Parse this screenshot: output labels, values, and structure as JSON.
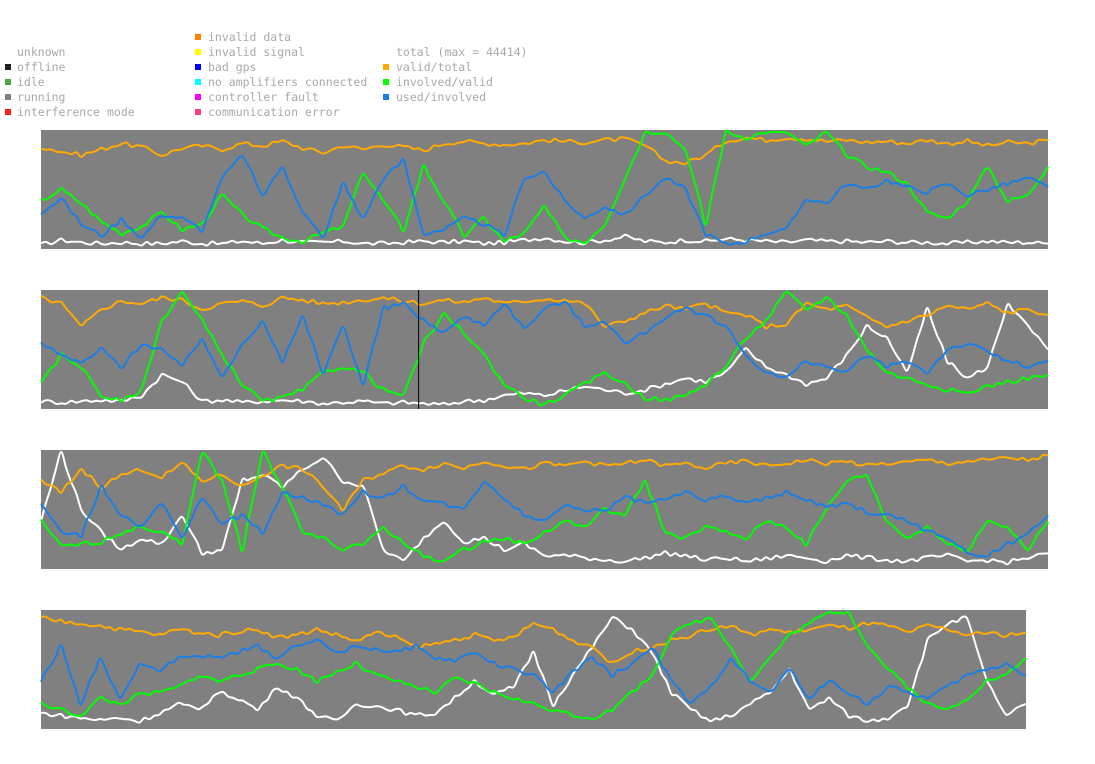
{
  "legend": {
    "state": [
      {
        "label": "unknown",
        "color": ""
      },
      {
        "label": "offline",
        "color": "#222222"
      },
      {
        "label": "idle",
        "color": "#4aa64a"
      },
      {
        "label": "running",
        "color": "#808080"
      },
      {
        "label": "interference mode",
        "color": "#ff2020"
      }
    ],
    "quality": [
      {
        "label": "invalid data",
        "color": "#ff7f00"
      },
      {
        "label": "invalid signal",
        "color": "#ffff00"
      },
      {
        "label": "bad gps",
        "color": "#0000ff"
      },
      {
        "label": "no amplifiers connected",
        "color": "#00ffff"
      },
      {
        "label": "controller fault",
        "color": "#ff00ff"
      },
      {
        "label": "communication error",
        "color": "#ff4080"
      }
    ],
    "series": [
      {
        "label": "total (max = 44414)",
        "color": ""
      },
      {
        "label": "valid/total",
        "color": "#ffaa00"
      },
      {
        "label": "involved/valid",
        "color": "#00ff00"
      },
      {
        "label": "used/involved",
        "color": "#1a7ee6"
      }
    ]
  },
  "chart_data": {
    "type": "line",
    "panels": 4,
    "background_color": "#808080",
    "y_range": [
      0,
      1
    ],
    "colors": {
      "total": "#ffffff",
      "valid/total": "#ffaa00",
      "involved/valid": "#00ff00",
      "used/involved": "#1a7ee6"
    },
    "panel_series": [
      {
        "total": [
          0.02,
          0.06,
          0.04,
          0.03,
          0.04,
          0.03,
          0.03,
          0.05,
          0.03,
          0.03,
          0.05,
          0.03,
          0.06,
          0.04,
          0.04,
          0.05,
          0.03,
          0.03,
          0.04,
          0.05,
          0.04,
          0.05,
          0.03,
          0.04,
          0.06,
          0.08,
          0.05,
          0.04,
          0.06,
          0.09,
          0.05,
          0.04,
          0.06,
          0.05,
          0.07,
          0.06,
          0.05,
          0.04,
          0.06,
          0.05,
          0.05,
          0.04,
          0.05,
          0.04,
          0.04,
          0.03,
          0.04,
          0.05,
          0.04,
          0.04,
          0.03
        ],
        "valid/total": [
          0.87,
          0.83,
          0.8,
          0.85,
          0.9,
          0.87,
          0.8,
          0.86,
          0.88,
          0.85,
          0.9,
          0.88,
          0.92,
          0.86,
          0.82,
          0.88,
          0.85,
          0.89,
          0.87,
          0.84,
          0.9,
          0.92,
          0.9,
          0.89,
          0.9,
          0.93,
          0.92,
          0.91,
          0.93,
          0.94,
          0.88,
          0.75,
          0.73,
          0.8,
          0.92,
          0.95,
          0.93,
          0.95,
          0.94,
          0.92,
          0.93,
          0.91,
          0.92,
          0.9,
          0.93,
          0.9,
          0.92,
          0.88,
          0.91,
          0.9,
          0.93
        ],
        "involved/valid": [
          0.4,
          0.5,
          0.38,
          0.22,
          0.12,
          0.18,
          0.3,
          0.15,
          0.2,
          0.45,
          0.28,
          0.16,
          0.08,
          0.05,
          0.12,
          0.18,
          0.65,
          0.4,
          0.15,
          0.7,
          0.4,
          0.1,
          0.25,
          0.05,
          0.12,
          0.35,
          0.08,
          0.04,
          0.2,
          0.6,
          1.0,
          1.0,
          0.85,
          0.2,
          1.0,
          0.95,
          1.0,
          1.0,
          0.88,
          1.0,
          0.8,
          0.7,
          0.65,
          0.55,
          0.3,
          0.25,
          0.4,
          0.7,
          0.4,
          0.45,
          0.7
        ],
        "used/involved": [
          0.3,
          0.42,
          0.2,
          0.1,
          0.24,
          0.08,
          0.28,
          0.25,
          0.15,
          0.6,
          0.8,
          0.45,
          0.7,
          0.3,
          0.08,
          0.55,
          0.25,
          0.6,
          0.75,
          0.12,
          0.15,
          0.25,
          0.2,
          0.1,
          0.6,
          0.65,
          0.4,
          0.25,
          0.35,
          0.28,
          0.45,
          0.6,
          0.5,
          0.12,
          0.02,
          0.05,
          0.12,
          0.15,
          0.42,
          0.38,
          0.55,
          0.5,
          0.58,
          0.52,
          0.48,
          0.55,
          0.45,
          0.5,
          0.55,
          0.6,
          0.52
        ]
      },
      {
        "total": [
          0.05,
          0.04,
          0.05,
          0.06,
          0.05,
          0.1,
          0.28,
          0.22,
          0.05,
          0.06,
          0.04,
          0.05,
          0.06,
          0.05,
          0.03,
          0.04,
          0.05,
          0.03,
          0.04,
          0.03,
          0.02,
          0.05,
          0.06,
          0.1,
          0.12,
          0.1,
          0.14,
          0.18,
          0.15,
          0.12,
          0.15,
          0.2,
          0.25,
          0.22,
          0.3,
          0.5,
          0.35,
          0.28,
          0.2,
          0.25,
          0.45,
          0.7,
          0.6,
          0.3,
          0.85,
          0.4,
          0.25,
          0.35,
          0.9,
          0.7,
          0.5
        ],
        "valid/total": [
          0.95,
          0.9,
          0.7,
          0.85,
          0.92,
          0.9,
          0.95,
          0.93,
          0.85,
          0.9,
          0.92,
          0.88,
          0.95,
          0.93,
          0.9,
          0.91,
          0.93,
          0.95,
          0.92,
          0.9,
          0.93,
          0.91,
          0.95,
          0.9,
          0.92,
          0.94,
          0.93,
          0.9,
          0.7,
          0.75,
          0.82,
          0.88,
          0.85,
          0.9,
          0.82,
          0.8,
          0.7,
          0.72,
          0.9,
          0.85,
          0.88,
          0.78,
          0.7,
          0.75,
          0.8,
          0.88,
          0.85,
          0.9,
          0.82,
          0.85,
          0.8
        ],
        "involved/valid": [
          0.2,
          0.45,
          0.35,
          0.1,
          0.05,
          0.15,
          0.75,
          1.0,
          0.75,
          0.45,
          0.2,
          0.05,
          0.08,
          0.15,
          0.3,
          0.35,
          0.3,
          0.15,
          0.1,
          0.55,
          0.8,
          0.65,
          0.45,
          0.2,
          0.08,
          0.02,
          0.1,
          0.2,
          0.3,
          0.2,
          0.08,
          0.06,
          0.1,
          0.2,
          0.35,
          0.6,
          0.75,
          1.0,
          0.85,
          0.95,
          0.8,
          0.5,
          0.3,
          0.25,
          0.2,
          0.15,
          0.12,
          0.18,
          0.22,
          0.25,
          0.28
        ],
        "used/involved": [
          0.55,
          0.45,
          0.38,
          0.5,
          0.35,
          0.55,
          0.5,
          0.35,
          0.6,
          0.25,
          0.55,
          0.75,
          0.4,
          0.78,
          0.3,
          0.7,
          0.2,
          0.85,
          0.9,
          0.75,
          0.65,
          0.78,
          0.72,
          0.9,
          0.68,
          0.85,
          0.92,
          0.7,
          0.75,
          0.55,
          0.65,
          0.78,
          0.85,
          0.8,
          0.7,
          0.45,
          0.3,
          0.25,
          0.4,
          0.35,
          0.3,
          0.45,
          0.35,
          0.4,
          0.3,
          0.5,
          0.55,
          0.48,
          0.4,
          0.35,
          0.4
        ]
      },
      {
        "total": [
          0.4,
          1.0,
          0.5,
          0.3,
          0.15,
          0.25,
          0.2,
          0.45,
          0.12,
          0.15,
          0.75,
          0.8,
          0.7,
          0.85,
          0.95,
          0.75,
          0.7,
          0.15,
          0.05,
          0.25,
          0.4,
          0.22,
          0.25,
          0.15,
          0.2,
          0.1,
          0.1,
          0.08,
          0.06,
          0.05,
          0.08,
          0.12,
          0.1,
          0.06,
          0.08,
          0.05,
          0.07,
          0.1,
          0.08,
          0.05,
          0.1,
          0.08,
          0.06,
          0.05,
          0.08,
          0.1,
          0.05,
          0.06,
          0.04,
          0.08,
          0.12
        ],
        "valid/total": [
          0.75,
          0.65,
          0.85,
          0.7,
          0.8,
          0.85,
          0.78,
          0.9,
          0.75,
          0.8,
          0.7,
          0.8,
          0.88,
          0.85,
          0.7,
          0.5,
          0.75,
          0.82,
          0.88,
          0.85,
          0.9,
          0.86,
          0.92,
          0.88,
          0.85,
          0.9,
          0.88,
          0.92,
          0.88,
          0.9,
          0.93,
          0.88,
          0.9,
          0.86,
          0.9,
          0.92,
          0.88,
          0.9,
          0.93,
          0.9,
          0.92,
          0.88,
          0.9,
          0.91,
          0.93,
          0.9,
          0.92,
          0.93,
          0.95,
          0.93,
          0.97
        ],
        "involved/valid": [
          0.4,
          0.18,
          0.2,
          0.22,
          0.3,
          0.35,
          0.3,
          0.2,
          1.0,
          0.75,
          0.15,
          1.0,
          0.7,
          0.3,
          0.25,
          0.15,
          0.2,
          0.35,
          0.2,
          0.1,
          0.05,
          0.15,
          0.22,
          0.25,
          0.2,
          0.3,
          0.4,
          0.35,
          0.5,
          0.45,
          0.75,
          0.3,
          0.25,
          0.35,
          0.3,
          0.25,
          0.4,
          0.35,
          0.2,
          0.5,
          0.75,
          0.8,
          0.4,
          0.25,
          0.35,
          0.2,
          0.15,
          0.4,
          0.35,
          0.15,
          0.4
        ],
        "used/involved": [
          0.55,
          0.3,
          0.28,
          0.7,
          0.45,
          0.35,
          0.55,
          0.25,
          0.6,
          0.38,
          0.45,
          0.3,
          0.65,
          0.6,
          0.55,
          0.45,
          0.65,
          0.6,
          0.7,
          0.58,
          0.55,
          0.5,
          0.75,
          0.6,
          0.45,
          0.4,
          0.55,
          0.5,
          0.48,
          0.62,
          0.55,
          0.6,
          0.65,
          0.58,
          0.62,
          0.55,
          0.6,
          0.65,
          0.58,
          0.52,
          0.55,
          0.48,
          0.45,
          0.4,
          0.32,
          0.25,
          0.12,
          0.1,
          0.2,
          0.28,
          0.45
        ]
      },
      {
        "total": [
          0.12,
          0.1,
          0.08,
          0.06,
          0.08,
          0.05,
          0.12,
          0.2,
          0.15,
          0.3,
          0.25,
          0.15,
          0.35,
          0.25,
          0.1,
          0.05,
          0.2,
          0.18,
          0.15,
          0.1,
          0.12,
          0.25,
          0.4,
          0.28,
          0.35,
          0.65,
          0.2,
          0.45,
          0.7,
          0.95,
          0.85,
          0.65,
          0.3,
          0.15,
          0.05,
          0.1,
          0.2,
          0.3,
          0.5,
          0.15,
          0.25,
          0.1,
          0.05,
          0.08,
          0.2,
          0.75,
          0.9,
          0.95,
          0.4,
          0.1,
          0.2
        ],
        "valid/total": [
          0.95,
          0.92,
          0.9,
          0.88,
          0.85,
          0.83,
          0.8,
          0.85,
          0.82,
          0.8,
          0.83,
          0.85,
          0.78,
          0.8,
          0.85,
          0.8,
          0.75,
          0.82,
          0.78,
          0.7,
          0.72,
          0.76,
          0.8,
          0.75,
          0.78,
          0.9,
          0.85,
          0.75,
          0.7,
          0.55,
          0.65,
          0.7,
          0.75,
          0.8,
          0.85,
          0.88,
          0.8,
          0.85,
          0.82,
          0.85,
          0.88,
          0.86,
          0.9,
          0.88,
          0.82,
          0.88,
          0.85,
          0.8,
          0.82,
          0.8,
          0.82
        ],
        "involved/valid": [
          0.2,
          0.15,
          0.1,
          0.25,
          0.2,
          0.28,
          0.3,
          0.35,
          0.45,
          0.4,
          0.45,
          0.5,
          0.55,
          0.5,
          0.4,
          0.48,
          0.55,
          0.45,
          0.4,
          0.35,
          0.3,
          0.42,
          0.38,
          0.3,
          0.25,
          0.2,
          0.15,
          0.1,
          0.08,
          0.15,
          0.3,
          0.45,
          0.8,
          0.9,
          0.95,
          0.7,
          0.4,
          0.6,
          0.8,
          0.9,
          1.0,
          1.0,
          0.7,
          0.5,
          0.35,
          0.2,
          0.15,
          0.25,
          0.4,
          0.45,
          0.6
        ],
        "used/involved": [
          0.4,
          0.7,
          0.2,
          0.6,
          0.25,
          0.55,
          0.5,
          0.6,
          0.62,
          0.6,
          0.65,
          0.7,
          0.6,
          0.72,
          0.75,
          0.65,
          0.7,
          0.68,
          0.65,
          0.7,
          0.6,
          0.58,
          0.65,
          0.55,
          0.5,
          0.45,
          0.3,
          0.48,
          0.6,
          0.45,
          0.55,
          0.7,
          0.4,
          0.2,
          0.35,
          0.6,
          0.4,
          0.3,
          0.5,
          0.25,
          0.4,
          0.3,
          0.2,
          0.35,
          0.3,
          0.25,
          0.35,
          0.45,
          0.5,
          0.55,
          0.45
        ]
      }
    ],
    "cursor_marker": {
      "panel": 2,
      "x_fraction": 0.375,
      "color": "#000000"
    }
  }
}
